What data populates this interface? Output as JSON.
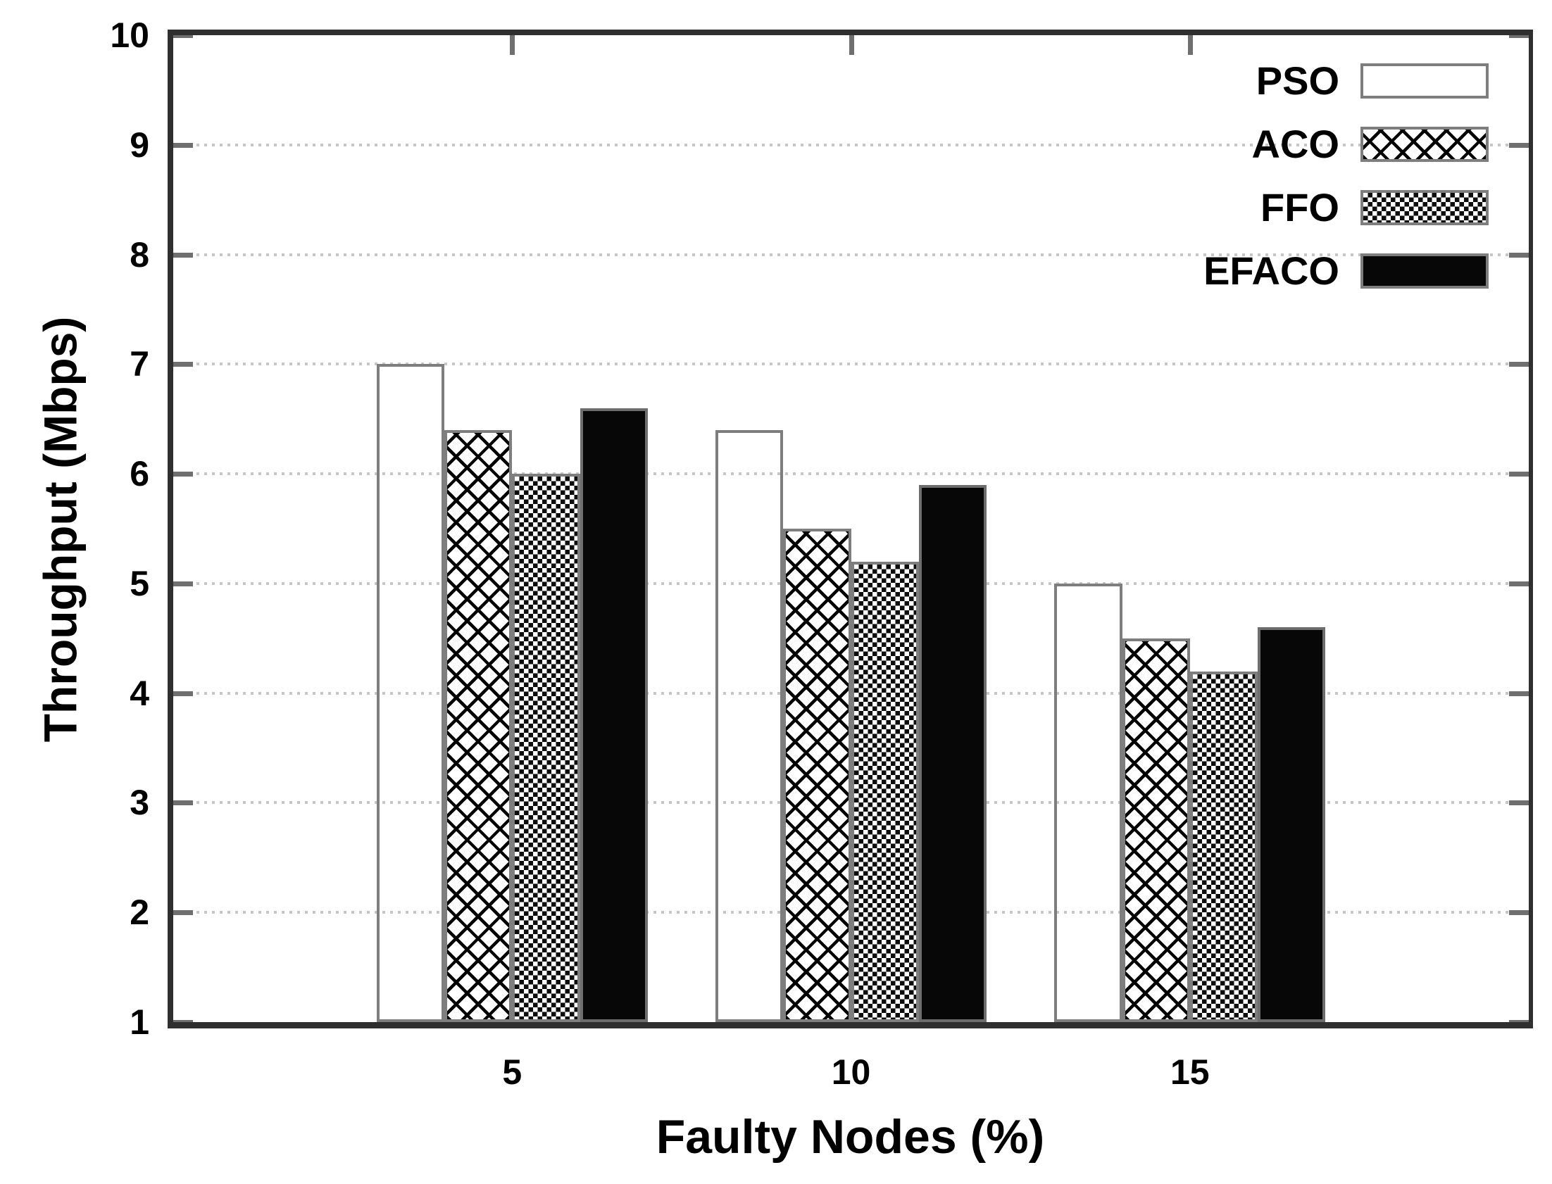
{
  "chart_data": {
    "type": "bar",
    "title": "",
    "xlabel": "Faulty Nodes (%)",
    "ylabel": "Throughput (Mbps)",
    "categories": [
      "5",
      "10",
      "15"
    ],
    "category_axis_positions": [
      5,
      10,
      15
    ],
    "x_axis_range": [
      0,
      20
    ],
    "ylim": [
      1,
      10
    ],
    "yticks": [
      1,
      2,
      3,
      4,
      5,
      6,
      7,
      8,
      9,
      10
    ],
    "grid": "horizontal dotted lines at integer yticks",
    "legend_position": "top-right-inside",
    "series": [
      {
        "name": "PSO",
        "fill": "white-empty",
        "values": [
          7.0,
          6.4,
          5.0
        ]
      },
      {
        "name": "ACO",
        "fill": "diagonal-crosshatch",
        "values": [
          6.4,
          5.5,
          4.5
        ]
      },
      {
        "name": "FFO",
        "fill": "fine-checkerboard",
        "values": [
          6.0,
          5.2,
          4.2
        ]
      },
      {
        "name": "EFACO",
        "fill": "solid-black",
        "values": [
          6.6,
          5.9,
          4.6
        ]
      }
    ]
  },
  "colors": {
    "background": "#ffffff",
    "plot_border": "#2f2f2f",
    "bar_border": "#7e7e7e",
    "grid_dots": "#c6c6c6",
    "tick_marks": "#6f6f6f",
    "text": "#000000",
    "solid_fill": "#070707"
  }
}
